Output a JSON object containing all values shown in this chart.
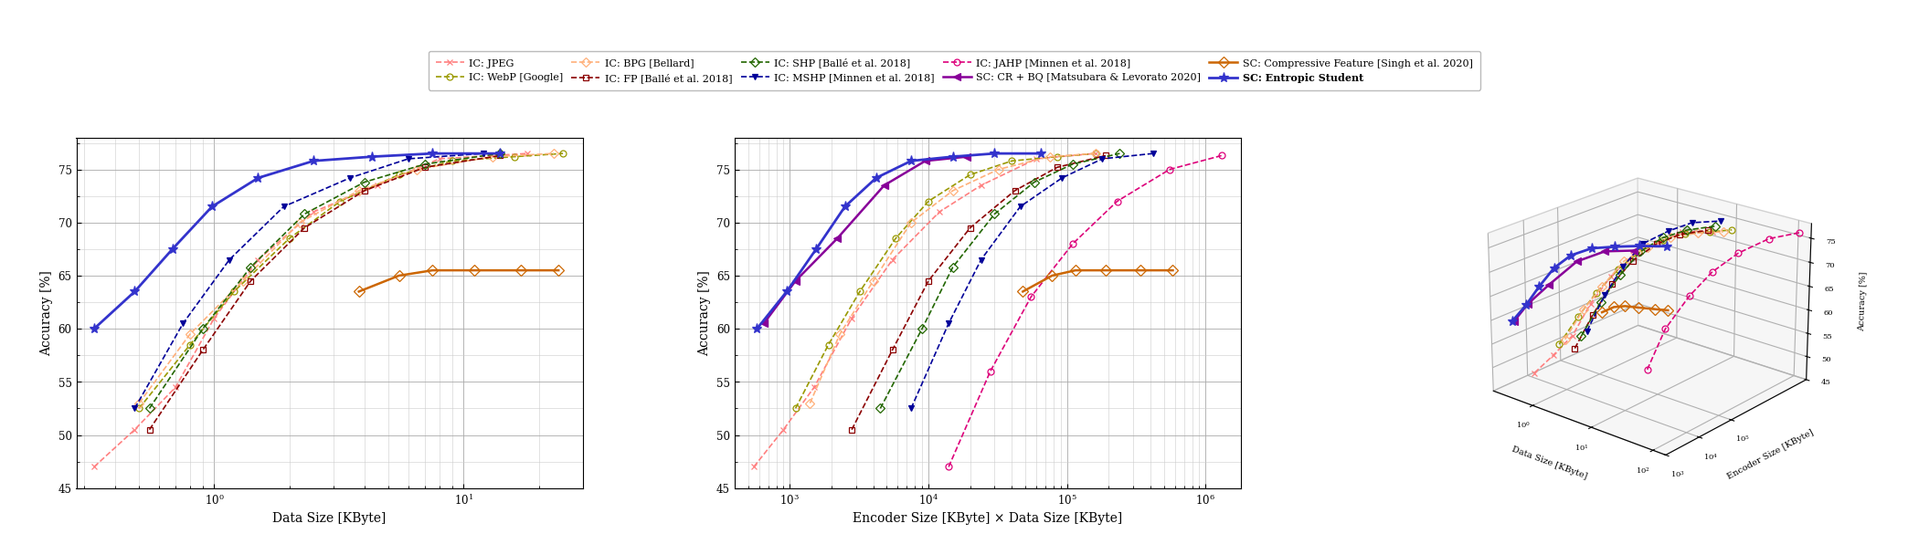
{
  "series_style": {
    "IC: JPEG": {
      "color": "#FF8080",
      "linestyle": "--",
      "marker": "x",
      "linewidth": 1.2,
      "markersize": 5
    },
    "IC: WebP [Google]": {
      "color": "#999900",
      "linestyle": "--",
      "marker": "o",
      "linewidth": 1.2,
      "markersize": 5
    },
    "IC: BPG [Bellard]": {
      "color": "#FFB07A",
      "linestyle": "--",
      "marker": "D",
      "linewidth": 1.2,
      "markersize": 5
    },
    "IC: FP [Ballé et al. 2018]": {
      "color": "#8B0000",
      "linestyle": "--",
      "marker": "s",
      "linewidth": 1.2,
      "markersize": 5
    },
    "IC: SHP [Ballé et al. 2018]": {
      "color": "#226600",
      "linestyle": "--",
      "marker": "D",
      "linewidth": 1.2,
      "markersize": 5
    },
    "IC: MSHP [Minnen et al. 2018]": {
      "color": "#000099",
      "linestyle": "--",
      "marker": "v",
      "linewidth": 1.2,
      "markersize": 5
    },
    "IC: JAHP [Minnen et al. 2018]": {
      "color": "#DD007A",
      "linestyle": "--",
      "marker": "o",
      "linewidth": 1.2,
      "markersize": 5
    },
    "SC: CR + BQ [Matsubara & Levorato 2020]": {
      "color": "#880099",
      "linestyle": "-",
      "marker": "<",
      "linewidth": 1.8,
      "markersize": 6
    },
    "SC: Compressive Feature [Singh et al. 2020]": {
      "color": "#CC6600",
      "linestyle": "-",
      "marker": "D",
      "linewidth": 1.8,
      "markersize": 6
    },
    "SC: Entropic Student": {
      "color": "#3333CC",
      "linestyle": "-",
      "marker": "*",
      "linewidth": 2.0,
      "markersize": 8
    }
  },
  "legend_row1": [
    "IC: JPEG",
    "IC: BPG [Bellard]",
    "IC: SHP [Ballé et al. 2018]",
    "IC: JAHP [Minnen et al. 2018]",
    "SC: Compressive Feature [Singh et al. 2020]"
  ],
  "legend_row2": [
    "IC: WebP [Google]",
    "IC: FP [Ballé et al. 2018]",
    "IC: MSHP [Minnen et al. 2018]",
    "SC: CR + BQ [Matsubara & Levorato 2020]",
    "SC: Entropic Student"
  ],
  "plot1": {
    "xlabel": "Data Size [KByte]",
    "ylabel": "Accuracy [%]",
    "xlim": [
      0.28,
      30
    ],
    "ylim": [
      45,
      78
    ],
    "yticks": [
      45,
      50,
      55,
      60,
      65,
      70,
      75
    ],
    "series": [
      {
        "key": "IC: JPEG",
        "x": [
          0.33,
          0.48,
          0.7,
          1.0,
          1.5,
          2.5,
          4.5,
          8,
          18
        ],
        "y": [
          47.0,
          50.5,
          54.5,
          61.0,
          66.5,
          71.0,
          73.5,
          76.0,
          76.5
        ]
      },
      {
        "key": "IC: WebP [Google]",
        "x": [
          0.5,
          0.8,
          1.2,
          2.0,
          3.2,
          5.5,
          9,
          16,
          25
        ],
        "y": [
          52.5,
          58.5,
          63.5,
          68.5,
          72.0,
          74.5,
          75.8,
          76.2,
          76.5
        ]
      },
      {
        "key": "IC: BPG [Bellard]",
        "x": [
          0.5,
          0.8,
          1.3,
          2.2,
          3.8,
          6.5,
          13,
          23
        ],
        "y": [
          53.0,
          59.5,
          64.5,
          70.0,
          73.0,
          75.0,
          76.2,
          76.5
        ]
      },
      {
        "key": "IC: FP [Ballé et al. 2018]",
        "x": [
          0.55,
          0.9,
          1.4,
          2.3,
          4.0,
          7.0,
          14
        ],
        "y": [
          50.5,
          58.0,
          64.5,
          69.5,
          73.0,
          75.2,
          76.3
        ]
      },
      {
        "key": "IC: SHP [Ballé et al. 2018]",
        "x": [
          0.55,
          0.9,
          1.4,
          2.3,
          4.0,
          7.0,
          14
        ],
        "y": [
          52.5,
          60.0,
          65.8,
          70.8,
          73.8,
          75.5,
          76.5
        ]
      },
      {
        "key": "IC: MSHP [Minnen et al. 2018]",
        "x": [
          0.48,
          0.75,
          1.15,
          1.9,
          3.5,
          6.0,
          12
        ],
        "y": [
          52.5,
          60.5,
          66.5,
          71.5,
          74.2,
          76.0,
          76.5
        ]
      },
      {
        "key": "SC: Compressive Feature [Singh et al. 2020]",
        "x": [
          3.8,
          5.5,
          7.5,
          11.0,
          17.0,
          24.0
        ],
        "y": [
          63.5,
          65.0,
          65.5,
          65.5,
          65.5,
          65.5
        ]
      },
      {
        "key": "SC: Entropic Student",
        "x": [
          0.33,
          0.48,
          0.68,
          0.98,
          1.5,
          2.5,
          4.3,
          7.5,
          14.0
        ],
        "y": [
          60.0,
          63.5,
          67.5,
          71.5,
          74.2,
          75.8,
          76.2,
          76.5,
          76.5
        ]
      }
    ]
  },
  "plot2": {
    "xlabel": "Encoder Size [KByte] × Data Size [KByte]",
    "ylabel": "Accuracy [%]",
    "xlim": [
      400,
      1800000
    ],
    "ylim": [
      45,
      78
    ],
    "yticks": [
      45,
      50,
      55,
      60,
      65,
      70,
      75
    ],
    "series": [
      {
        "key": "IC: JPEG",
        "x": [
          550,
          900,
          1500,
          2800,
          5500,
          12000,
          24000,
          60000,
          160000
        ],
        "y": [
          47.0,
          50.5,
          54.5,
          61.0,
          66.5,
          71.0,
          73.5,
          76.0,
          76.5
        ]
      },
      {
        "key": "IC: WebP [Google]",
        "x": [
          1100,
          1900,
          3200,
          5800,
          10000,
          20000,
          40000,
          85000,
          160000
        ],
        "y": [
          52.5,
          58.5,
          63.5,
          68.5,
          72.0,
          74.5,
          75.8,
          76.2,
          76.5
        ]
      },
      {
        "key": "IC: BPG [Bellard]",
        "x": [
          1400,
          2300,
          4000,
          7500,
          15000,
          32000,
          75000,
          160000
        ],
        "y": [
          53.0,
          59.5,
          64.5,
          70.0,
          73.0,
          75.0,
          76.2,
          76.5
        ]
      },
      {
        "key": "IC: FP [Ballé et al. 2018]",
        "x": [
          2800,
          5500,
          10000,
          20000,
          42000,
          85000,
          190000
        ],
        "y": [
          50.5,
          58.0,
          64.5,
          69.5,
          73.0,
          75.2,
          76.3
        ]
      },
      {
        "key": "IC: SHP [Ballé et al. 2018]",
        "x": [
          4500,
          9000,
          15000,
          30000,
          58000,
          110000,
          240000
        ],
        "y": [
          52.5,
          60.0,
          65.8,
          70.8,
          73.8,
          75.5,
          76.5
        ]
      },
      {
        "key": "IC: MSHP [Minnen et al. 2018]",
        "x": [
          7500,
          14000,
          24000,
          46000,
          92000,
          180000,
          420000
        ],
        "y": [
          52.5,
          60.5,
          66.5,
          71.5,
          74.2,
          76.0,
          76.5
        ]
      },
      {
        "key": "IC: JAHP [Minnen et al. 2018]",
        "x": [
          14000,
          28000,
          55000,
          110000,
          230000,
          550000,
          1300000
        ],
        "y": [
          47.0,
          56.0,
          63.0,
          68.0,
          72.0,
          75.0,
          76.3
        ]
      },
      {
        "key": "SC: CR + BQ [Matsubara & Levorato 2020]",
        "x": [
          650,
          1100,
          2200,
          4800,
          9500,
          19000
        ],
        "y": [
          60.5,
          64.5,
          68.5,
          73.5,
          75.8,
          76.2
        ]
      },
      {
        "key": "SC: Compressive Feature [Singh et al. 2020]",
        "x": [
          48000,
          78000,
          115000,
          190000,
          340000,
          580000
        ],
        "y": [
          63.5,
          65.0,
          65.5,
          65.5,
          65.5,
          65.5
        ]
      },
      {
        "key": "SC: Entropic Student",
        "x": [
          580,
          950,
          1550,
          2500,
          4200,
          7500,
          15000,
          30000,
          65000
        ],
        "y": [
          60.0,
          63.5,
          67.5,
          71.5,
          74.2,
          75.8,
          76.2,
          76.5,
          76.5
        ]
      }
    ]
  },
  "plot3_series": [
    {
      "key": "IC: JPEG",
      "dx": [
        -0.48,
        -0.32,
        -0.15,
        0.0,
        0.18,
        0.4,
        0.65,
        0.9,
        1.26
      ],
      "ex": [
        3.85,
        4.15,
        4.45,
        4.75,
        5.05,
        5.35,
        5.65,
        5.95,
        6.2
      ],
      "y": [
        47.0,
        50.5,
        54.5,
        61.0,
        66.5,
        71.0,
        73.5,
        76.0,
        76.5
      ]
    },
    {
      "key": "IC: WebP [Google]",
      "dx": [
        -0.3,
        -0.1,
        0.08,
        0.3,
        0.5,
        0.74,
        0.95,
        1.2,
        1.4
      ],
      "ex": [
        4.3,
        4.55,
        4.78,
        5.08,
        5.34,
        5.65,
        5.93,
        6.23,
        6.54
      ],
      "y": [
        52.5,
        58.5,
        63.5,
        68.5,
        72.0,
        74.5,
        75.8,
        76.2,
        76.5
      ]
    },
    {
      "key": "IC: BPG [Bellard]",
      "dx": [
        -0.3,
        -0.1,
        0.11,
        0.34,
        0.58,
        0.81,
        1.11,
        1.36
      ],
      "ex": [
        4.48,
        4.7,
        4.9,
        5.18,
        5.45,
        5.74,
        6.04,
        6.34
      ],
      "y": [
        53.0,
        59.5,
        64.5,
        70.0,
        73.0,
        75.0,
        76.2,
        76.5
      ]
    },
    {
      "key": "IC: FP [Ballé et al. 2018]",
      "dx": [
        -0.26,
        -0.05,
        0.15,
        0.36,
        0.6,
        0.85,
        1.15
      ],
      "ex": [
        4.7,
        4.9,
        5.15,
        5.4,
        5.7,
        5.95,
        6.26
      ],
      "y": [
        50.5,
        58.0,
        64.5,
        69.5,
        73.0,
        75.2,
        76.3
      ]
    },
    {
      "key": "IC: SHP [Ballé et al. 2018]",
      "dx": [
        -0.26,
        -0.05,
        0.15,
        0.36,
        0.6,
        0.85,
        1.15
      ],
      "ex": [
        4.9,
        5.15,
        5.4,
        5.65,
        5.9,
        6.18,
        6.5
      ],
      "y": [
        52.5,
        60.0,
        65.8,
        70.8,
        73.8,
        75.5,
        76.5
      ]
    },
    {
      "key": "IC: MSHP [Minnen et al. 2018]",
      "dx": [
        -0.32,
        -0.12,
        0.06,
        0.28,
        0.54,
        0.78,
        1.08
      ],
      "ex": [
        5.18,
        5.4,
        5.65,
        5.86,
        6.2,
        6.48,
        6.81
      ],
      "y": [
        52.5,
        60.5,
        66.5,
        71.5,
        74.2,
        76.0,
        76.5
      ]
    },
    {
      "key": "IC: JAHP [Minnen et al. 2018]",
      "dx": [
        0.58,
        0.78,
        1.02,
        1.24,
        1.5,
        1.8,
        2.1
      ],
      "ex": [
        5.45,
        5.65,
        5.95,
        6.24,
        6.56,
        6.94,
        7.31
      ],
      "y": [
        47.0,
        56.0,
        63.0,
        68.0,
        72.0,
        75.0,
        76.3
      ]
    },
    {
      "key": "SC: CR + BQ [Matsubara & Levorato 2020]",
      "dx": [
        -0.4,
        -0.22,
        0.0,
        0.3,
        0.6,
        0.9
      ],
      "ex": [
        3.18,
        3.3,
        3.54,
        3.85,
        4.15,
        4.45
      ],
      "y": [
        60.5,
        64.5,
        68.5,
        73.5,
        75.8,
        76.2
      ]
    },
    {
      "key": "SC: Compressive Feature [Singh et al. 2020]",
      "dx": [
        0.58,
        0.74,
        0.88,
        1.04,
        1.23,
        1.38
      ],
      "ex": [
        4.08,
        4.15,
        4.23,
        4.34,
        4.48,
        4.6
      ],
      "y": [
        63.5,
        65.0,
        65.5,
        65.5,
        65.5,
        65.5
      ]
    },
    {
      "key": "SC: Entropic Student",
      "dx": [
        -0.48,
        -0.32,
        -0.17,
        0.0,
        0.18,
        0.4,
        0.63,
        0.88,
        1.15
      ],
      "ex": [
        3.26,
        3.4,
        3.54,
        3.7,
        3.88,
        4.11,
        4.38,
        4.65,
        4.98
      ],
      "y": [
        60.0,
        63.5,
        67.5,
        71.5,
        74.2,
        75.8,
        76.2,
        76.5,
        76.5
      ]
    }
  ],
  "bg_color": "#FFFFFF",
  "grid_color_major": "#AAAAAA",
  "grid_color_minor": "#CCCCCC",
  "font_family": "DejaVu Serif"
}
